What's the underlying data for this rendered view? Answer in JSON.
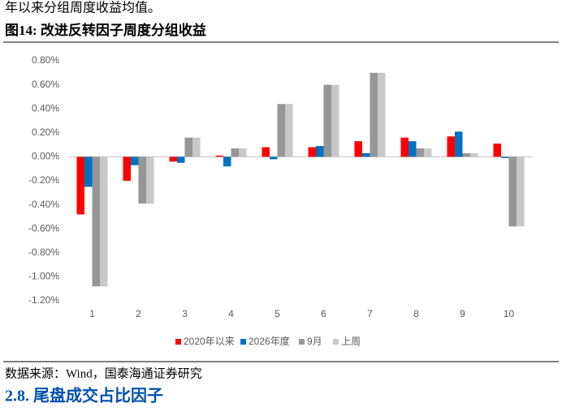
{
  "intro_text": "年以来分组周度收益均值。",
  "figure_title": "图14:  改进反转因子周度分组收益",
  "chart_data": {
    "type": "bar",
    "categories": [
      "1",
      "2",
      "3",
      "4",
      "5",
      "6",
      "7",
      "8",
      "9",
      "10"
    ],
    "series": [
      {
        "name": "2020年以来",
        "color": "#ff0000",
        "values": [
          -0.48,
          -0.2,
          -0.04,
          0.01,
          0.08,
          0.08,
          0.13,
          0.16,
          0.17,
          0.11
        ]
      },
      {
        "name": "2026年度",
        "color": "#0070c0",
        "values": [
          -0.25,
          -0.07,
          -0.05,
          -0.08,
          -0.02,
          0.09,
          0.03,
          0.13,
          0.21,
          -0.01
        ]
      },
      {
        "name": "9月",
        "color": "#969696",
        "values": [
          -1.08,
          -0.39,
          0.16,
          0.07,
          0.44,
          0.6,
          0.7,
          0.07,
          0.03,
          -0.58
        ]
      },
      {
        "name": "上周",
        "color": "#c8c8c8",
        "values": [
          -1.08,
          -0.39,
          0.16,
          0.07,
          0.44,
          0.6,
          0.7,
          0.07,
          0.03,
          -0.58
        ]
      }
    ],
    "ylim": [
      -1.2,
      0.8
    ],
    "yticks": [
      {
        "value": 0.8,
        "label": "0.80%"
      },
      {
        "value": 0.6,
        "label": "0.60%"
      },
      {
        "value": 0.4,
        "label": "0.40%"
      },
      {
        "value": 0.2,
        "label": "0.20%"
      },
      {
        "value": 0,
        "label": "0.00%"
      },
      {
        "value": -0.2,
        "label": "-0.20%"
      },
      {
        "value": -0.4,
        "label": "-0.40%"
      },
      {
        "value": -0.6,
        "label": "-0.60%"
      },
      {
        "value": -0.8,
        "label": "-0.80%"
      },
      {
        "value": -1.0,
        "label": "-1.00%"
      },
      {
        "value": -1.2,
        "label": "-1.20%"
      }
    ],
    "legend": "bottom"
  },
  "source": "数据来源：Wind，国泰海通证券研究",
  "section_heading": "2.8.   尾盘成交占比因子"
}
